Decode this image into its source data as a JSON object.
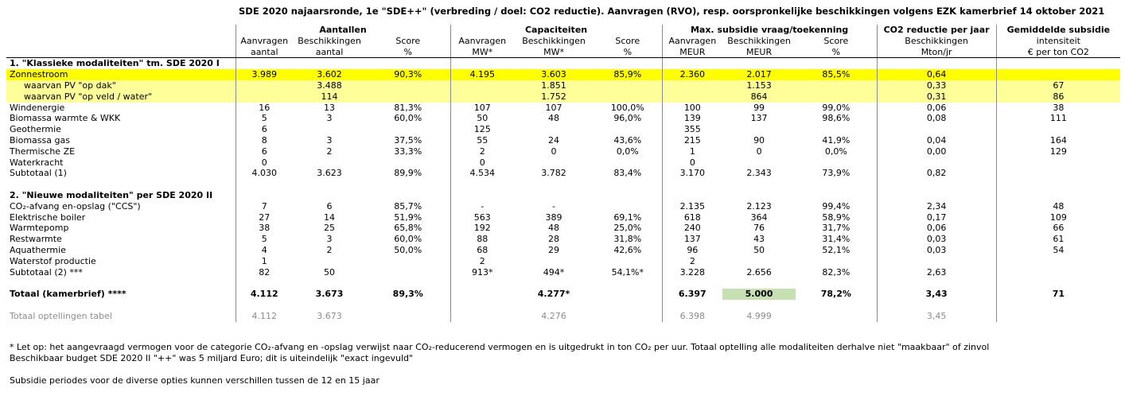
{
  "title": "SDE 2020 najaarsronde, 1e \"SDE++\" (verbreding / doel: CO2 reductie). Aanvragen (RVO), resp. oorspronkelijke beschikkingen volgens EZK kamerbrief 14 oktober 2021",
  "groups": [
    "Aantallen",
    "Capaciteiten",
    "Max. subsidie vraag/toekenning",
    "CO2 reductie per jaar",
    "Gemiddelde subsidie"
  ],
  "sub1": [
    "Aanvragen",
    "Beschikkingen",
    "Score",
    "Aanvragen",
    "Beschikkingen",
    "Score",
    "Aanvragen",
    "Beschikkingen",
    "Score",
    "Beschikkingen",
    "intensiteit"
  ],
  "sub2": [
    "aantal",
    "aantal",
    "%",
    "MW*",
    "MW*",
    "%",
    "MEUR",
    "MEUR",
    "%",
    "Mton/jr",
    "€ per ton CO2"
  ],
  "section1": "1. \"Klassieke modaliteiten\" tm. SDE 2020 I",
  "rows1": [
    {
      "label": "Zonnestroom",
      "v": [
        "3.989",
        "3.602",
        "90,3%",
        "4.195",
        "3.603",
        "85,9%",
        "2.360",
        "2.017",
        "85,5%",
        "0,64",
        ""
      ]
    },
    {
      "label": "waarvan PV \"op dak\"",
      "v": [
        "",
        "3.488",
        "",
        "",
        "1.851",
        "",
        "",
        "1.153",
        "",
        "0,33",
        "67"
      ]
    },
    {
      "label": "waarvan PV \"op veld / water\"",
      "v": [
        "",
        "114",
        "",
        "",
        "1.752",
        "",
        "",
        "864",
        "",
        "0,31",
        "86"
      ]
    },
    {
      "label": "Windenergie",
      "v": [
        "16",
        "13",
        "81,3%",
        "107",
        "107",
        "100,0%",
        "100",
        "99",
        "99,0%",
        "0,06",
        "38"
      ]
    },
    {
      "label": "Biomassa warmte & WKK",
      "v": [
        "5",
        "3",
        "60,0%",
        "50",
        "48",
        "96,0%",
        "139",
        "137",
        "98,6%",
        "0,08",
        "111"
      ]
    },
    {
      "label": "Geothermie",
      "v": [
        "6",
        "",
        "",
        "125",
        "",
        "",
        "355",
        "",
        "",
        "",
        ""
      ]
    },
    {
      "label": "Biomassa gas",
      "v": [
        "8",
        "3",
        "37,5%",
        "55",
        "24",
        "43,6%",
        "215",
        "90",
        "41,9%",
        "0,04",
        "164"
      ]
    },
    {
      "label": "Thermische ZE",
      "v": [
        "6",
        "2",
        "33,3%",
        "2",
        "0",
        "0,0%",
        "1",
        "0",
        "0,0%",
        "0,00",
        "129"
      ]
    },
    {
      "label": "Waterkracht",
      "v": [
        "0",
        "",
        "",
        "0",
        "",
        "",
        "0",
        "",
        "",
        "",
        ""
      ]
    },
    {
      "label": "Subtotaal (1)",
      "v": [
        "4.030",
        "3.623",
        "89,9%",
        "4.534",
        "3.782",
        "83,4%",
        "3.170",
        "2.343",
        "73,9%",
        "0,82",
        ""
      ]
    }
  ],
  "section2": "2. \"Nieuwe modaliteiten\" per SDE 2020 II",
  "rows2": [
    {
      "label": "CO₂-afvang en-opslag (\"CCS\")",
      "v": [
        "7",
        "6",
        "85,7%",
        "-",
        "-",
        "",
        "2.135",
        "2.123",
        "99,4%",
        "2,34",
        "48"
      ]
    },
    {
      "label": "Elektrische boiler",
      "v": [
        "27",
        "14",
        "51,9%",
        "563",
        "389",
        "69,1%",
        "618",
        "364",
        "58,9%",
        "0,17",
        "109"
      ]
    },
    {
      "label": "Warmtepomp",
      "v": [
        "38",
        "25",
        "65,8%",
        "192",
        "48",
        "25,0%",
        "240",
        "76",
        "31,7%",
        "0,06",
        "66"
      ]
    },
    {
      "label": "Restwarmte",
      "v": [
        "5",
        "3",
        "60,0%",
        "88",
        "28",
        "31,8%",
        "137",
        "43",
        "31,4%",
        "0,03",
        "61"
      ]
    },
    {
      "label": "Aquathermie",
      "v": [
        "4",
        "2",
        "50,0%",
        "68",
        "29",
        "42,6%",
        "96",
        "50",
        "52,1%",
        "0,03",
        "54"
      ]
    },
    {
      "label": "Waterstof productie",
      "v": [
        "1",
        "",
        "",
        "2",
        "",
        "",
        "2",
        "",
        "",
        "",
        ""
      ]
    },
    {
      "label": "Subtotaal (2) ***",
      "v": [
        "82",
        "50",
        "",
        "913*",
        "494*",
        "54,1%*",
        "3.228",
        "2.656",
        "82,3%",
        "2,63",
        ""
      ]
    }
  ],
  "total": {
    "label": "Totaal (kamerbrief) ****",
    "v": [
      "4.112",
      "3.673",
      "89,3%",
      "",
      "4.277*",
      "",
      "6.397",
      "5.000",
      "78,2%",
      "3,43",
      "71"
    ]
  },
  "check": {
    "label": "Totaal optellingen tabel",
    "v": [
      "4.112",
      "3.673",
      "",
      "",
      "4.276",
      "",
      "6.398",
      "4.999",
      "",
      "3,45",
      ""
    ]
  },
  "footnote1": "* Let op: het aangevraagd vermogen voor de categorie CO₂-afvang en -opslag verwijst naar CO₂-reducerend vermogen en is uitgedrukt in ton CO₂ per uur. Totaal optelling alle modaliteiten derhalve niet \"maakbaar\" of zinvol",
  "footnote2": "Beschikbaar budget SDE 2020 II \"++\" was 5 miljard Euro; dit is uiteindelijk \"exact ingevuld\"",
  "footnote3": "Subsidie periodes voor de diverse opties kunnen verschillen tussen de 12 en 15 jaar",
  "colors": {
    "yellow": "#ffff00",
    "light_yellow": "#ffff99",
    "green": "#c6e0b4",
    "grey_text": "#8c8c8c"
  }
}
